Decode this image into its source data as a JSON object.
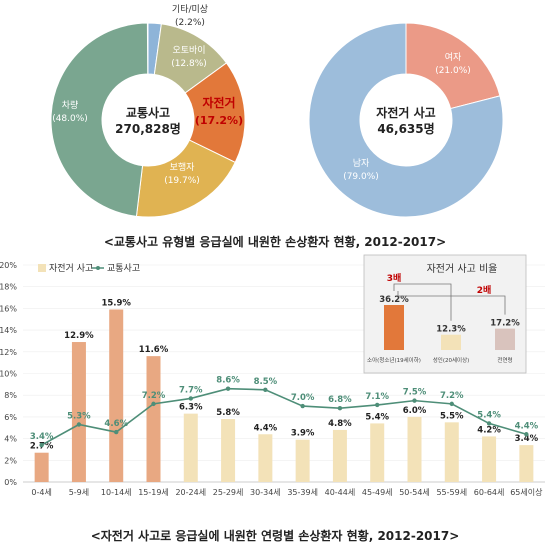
{
  "chart_data": [
    {
      "type": "pie",
      "center_title": "교통사고",
      "center_value": "270,828명",
      "slices": [
        {
          "label": "기타/미상",
          "pct_label": "(2.2%)",
          "value": 2.2,
          "color": "#8eb4d8",
          "label_color": "#333333"
        },
        {
          "label": "오토바이",
          "pct_label": "(12.8%)",
          "value": 12.8,
          "color": "#b9b98c",
          "label_color": "#ffffff"
        },
        {
          "label": "자전거",
          "pct_label": "(17.2%)",
          "value": 17.2,
          "color": "#e2783a",
          "label_color": "#ffffff"
        },
        {
          "label": "보행자",
          "pct_label": "(19.7%)",
          "value": 19.7,
          "color": "#e0b352",
          "label_color": "#ffffff"
        },
        {
          "label": "차량",
          "pct_label": "(48.0%)",
          "value": 48.0,
          "color": "#7aa690",
          "label_color": "#ffffff"
        }
      ],
      "highlight": {
        "label": "자전거",
        "pct_label": "17.2%)",
        "open_paren": "(",
        "color": "#c00000"
      }
    },
    {
      "type": "pie",
      "center_title": "자전거 사고",
      "center_value": "46,635명",
      "slices": [
        {
          "label": "여자",
          "pct_label": "(21.0%)",
          "value": 21.0,
          "color": "#eb9a87",
          "label_color": "#ffffff"
        },
        {
          "label": "남자",
          "pct_label": "(79.0%)",
          "value": 79.0,
          "color": "#9dbddb",
          "label_color": "#ffffff"
        }
      ]
    },
    {
      "type": "bar",
      "categories": [
        "0-4세",
        "5-9세",
        "10-14세",
        "15-19세",
        "20-24세",
        "25-29세",
        "30-34세",
        "35-39세",
        "40-44세",
        "45-49세",
        "50-54세",
        "55-59세",
        "60-64세",
        "65세이상"
      ],
      "series": [
        {
          "name": "자전거 사고",
          "values": [
            2.7,
            12.9,
            15.9,
            11.6,
            6.3,
            5.8,
            4.4,
            3.9,
            4.8,
            5.4,
            6.0,
            5.5,
            4.2,
            3.4
          ],
          "labels": [
            "2.7%",
            "12.9%",
            "15.9%",
            "11.6%",
            "6.3%",
            "5.8%",
            "4.4%",
            "3.9%",
            "4.8%",
            "5.4%",
            "6.0%",
            "5.5%",
            "4.2%",
            "3.4%"
          ]
        },
        {
          "name": "교통사고",
          "values": [
            3.4,
            5.3,
            4.6,
            7.2,
            7.7,
            8.6,
            8.5,
            7.0,
            6.8,
            7.1,
            7.5,
            7.2,
            5.4,
            4.4
          ],
          "labels": [
            "3.4%",
            "5.3%",
            "4.6%",
            "7.2%",
            "7.7%",
            "8.6%",
            "8.5%",
            "7.0%",
            "6.8%",
            "7.1%",
            "7.5%",
            "7.2%",
            "5.4%",
            "4.4%"
          ]
        }
      ],
      "yticks": [
        "0%",
        "2%",
        "4%",
        "6%",
        "8%",
        "10%",
        "12%",
        "14%",
        "16%",
        "18%",
        "20%"
      ],
      "ylim": [
        0,
        20
      ],
      "youth_count": 4,
      "colors": {
        "youth": "#e8a882",
        "adult": "#f3e2b8",
        "line": "#4e8e78",
        "line_label": "#4e8e78",
        "bar_label": "#222222"
      },
      "inset": {
        "title": "자전거 사고 비율",
        "categories": [
          "소아(청소년(19세이하)",
          "성인(20세이상)",
          "전연령"
        ],
        "values": [
          36.2,
          12.3,
          17.2
        ],
        "labels": [
          "36.2%",
          "12.3%",
          "17.2%"
        ],
        "colors": [
          "#e2783a",
          "#f3e2b8",
          "#d9c3bd"
        ],
        "ratio_3": "3배",
        "ratio_2": "2배"
      }
    }
  ],
  "captions": {
    "top": "<교통사고 유형별 응급실에 내원한 손상환자 현황, 2012-2017>",
    "bottom": "<자전거 사고로 응급실에 내원한 연령별 손상환자 현황, 2012-2017>"
  }
}
